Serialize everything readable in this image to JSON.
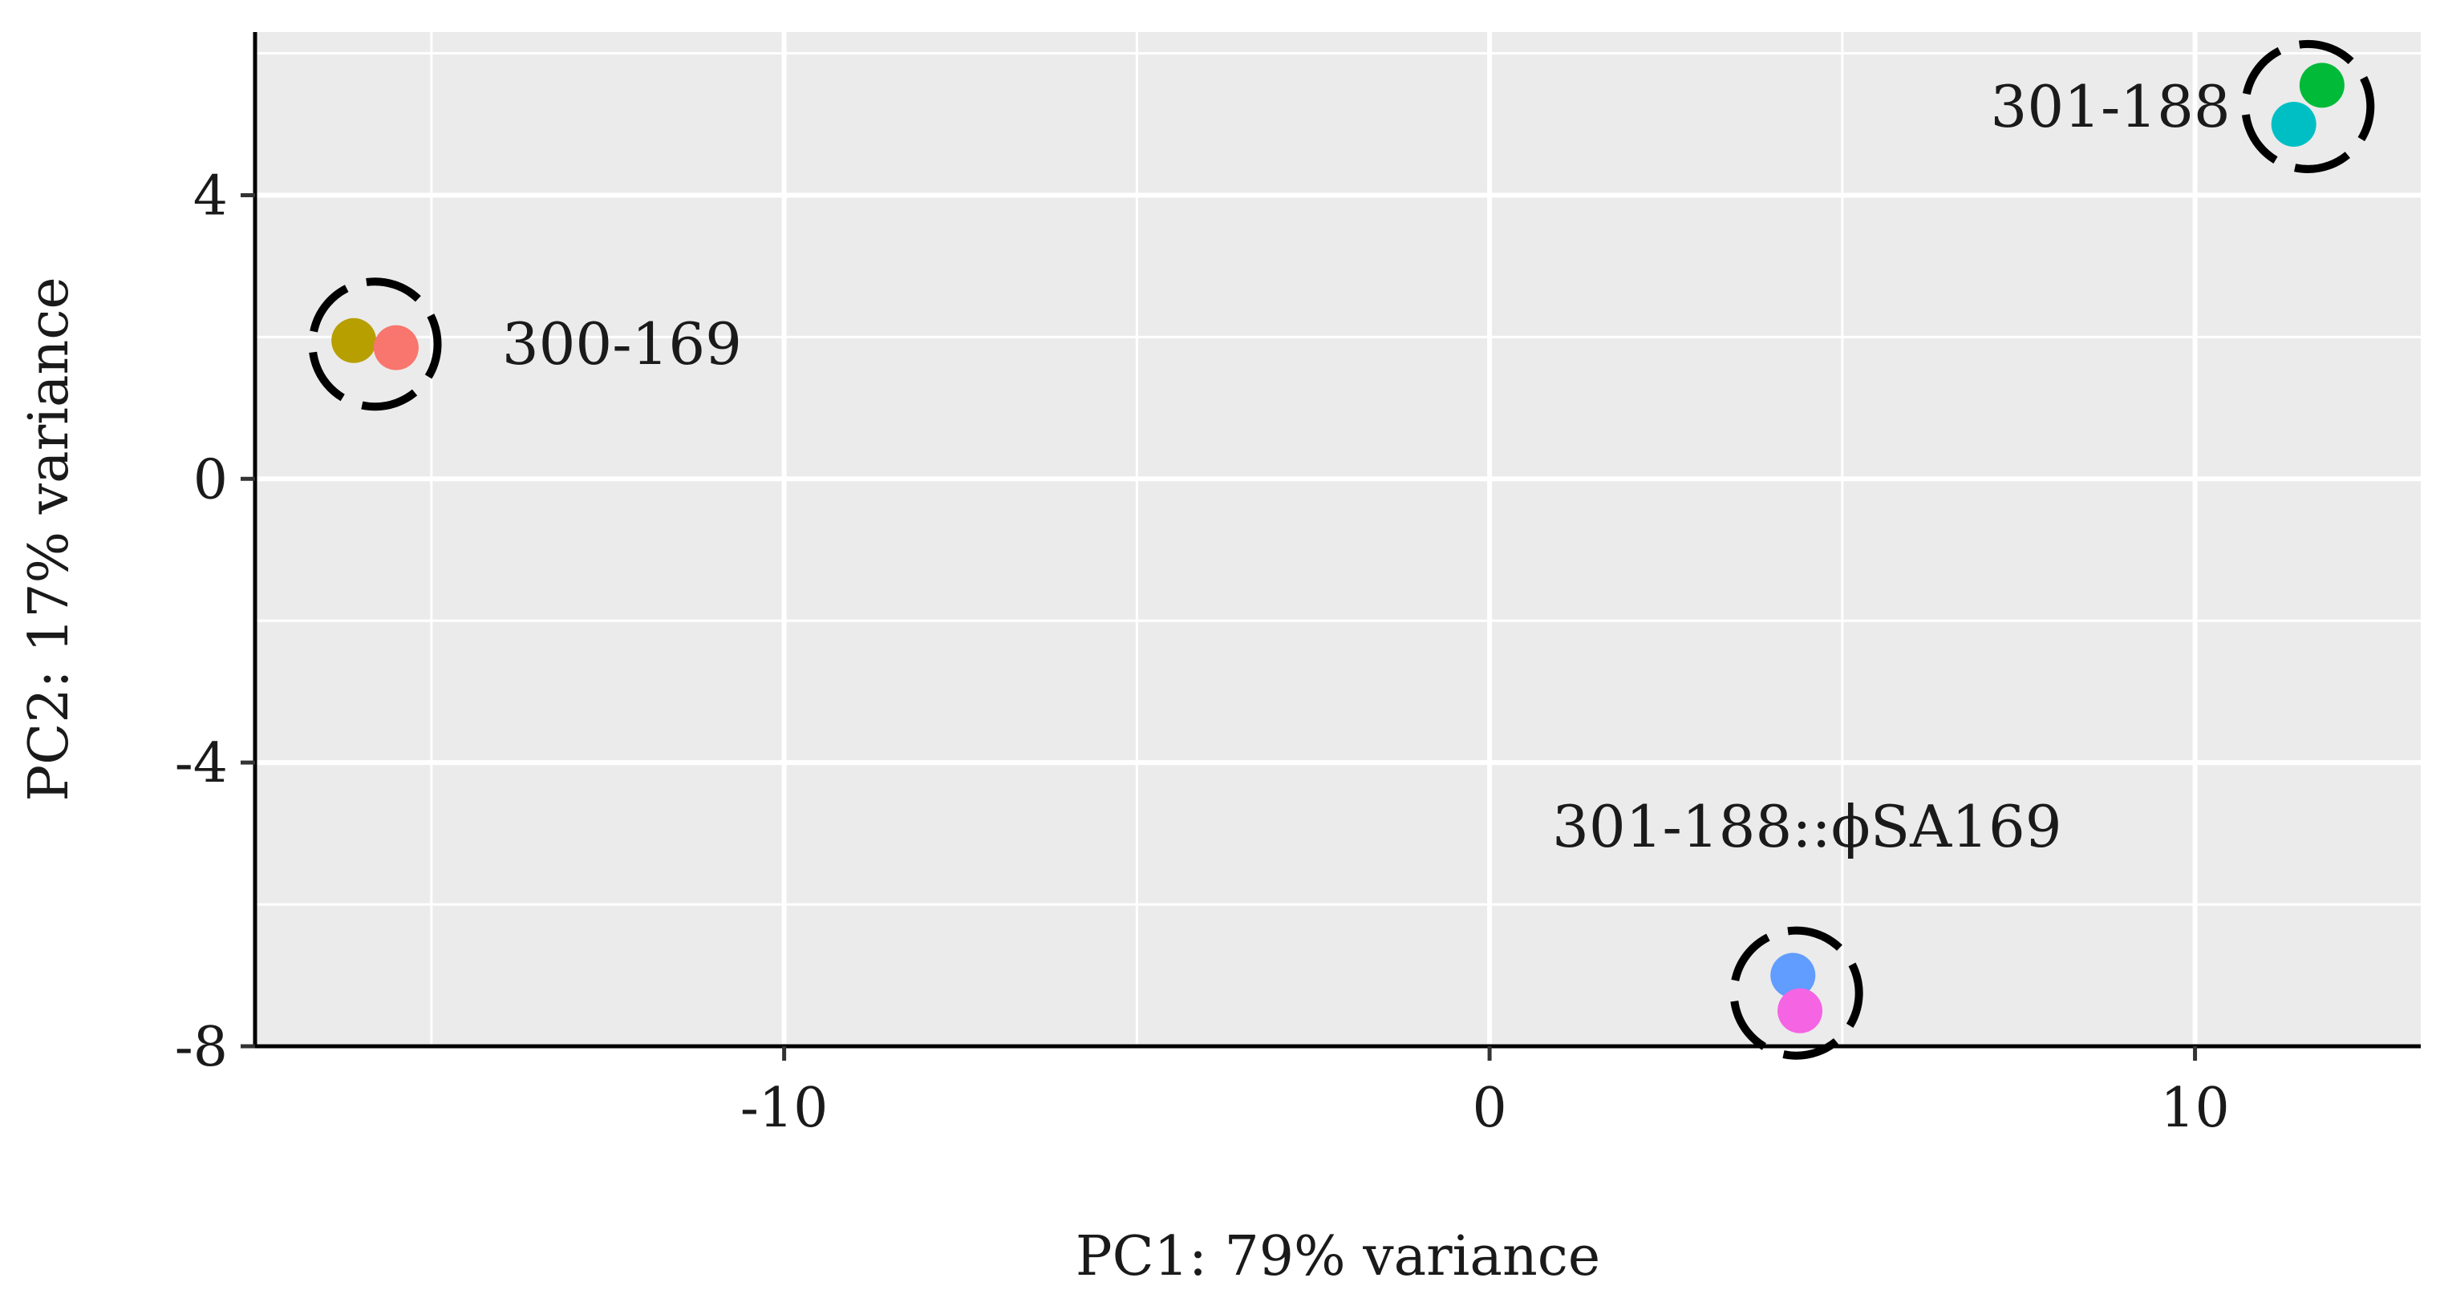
{
  "chart_data": {
    "type": "scatter",
    "title": "",
    "xlabel": "PC1: 79% variance",
    "ylabel": "PC2: 17% variance",
    "xlim": [
      -17.5,
      13.2
    ],
    "ylim": [
      -8.0,
      6.3
    ],
    "x_ticks": [
      -10,
      0,
      10
    ],
    "y_ticks": [
      4,
      0,
      -4,
      -8
    ],
    "x_tick_labels": [
      "-10",
      "0",
      "10"
    ],
    "y_tick_labels": [
      "4",
      "0",
      "-4",
      "-8"
    ],
    "grid": true,
    "background": "#ebebeb",
    "points": [
      {
        "x": -16.1,
        "y": 1.95,
        "color": "#b79f00"
      },
      {
        "x": -15.5,
        "y": 1.85,
        "color": "#f8766d"
      },
      {
        "x": 11.8,
        "y": 5.55,
        "color": "#00ba38"
      },
      {
        "x": 11.4,
        "y": 5.0,
        "color": "#00bfc4"
      },
      {
        "x": 4.3,
        "y": -7.0,
        "color": "#619cff"
      },
      {
        "x": 4.4,
        "y": -7.5,
        "color": "#f564e3"
      }
    ],
    "clusters": [
      {
        "label": "300-169",
        "cx": -15.8,
        "cy": 1.9,
        "label_x": -14.0,
        "label_y": 1.9
      },
      {
        "label": "301-188",
        "cx": 11.6,
        "cy": 5.25,
        "label_x": 7.1,
        "label_y": 5.25
      },
      {
        "label": "301-188::ϕSA169",
        "cx": 4.35,
        "cy": -7.25,
        "label_x": 4.5,
        "label_y": -4.9
      }
    ]
  }
}
